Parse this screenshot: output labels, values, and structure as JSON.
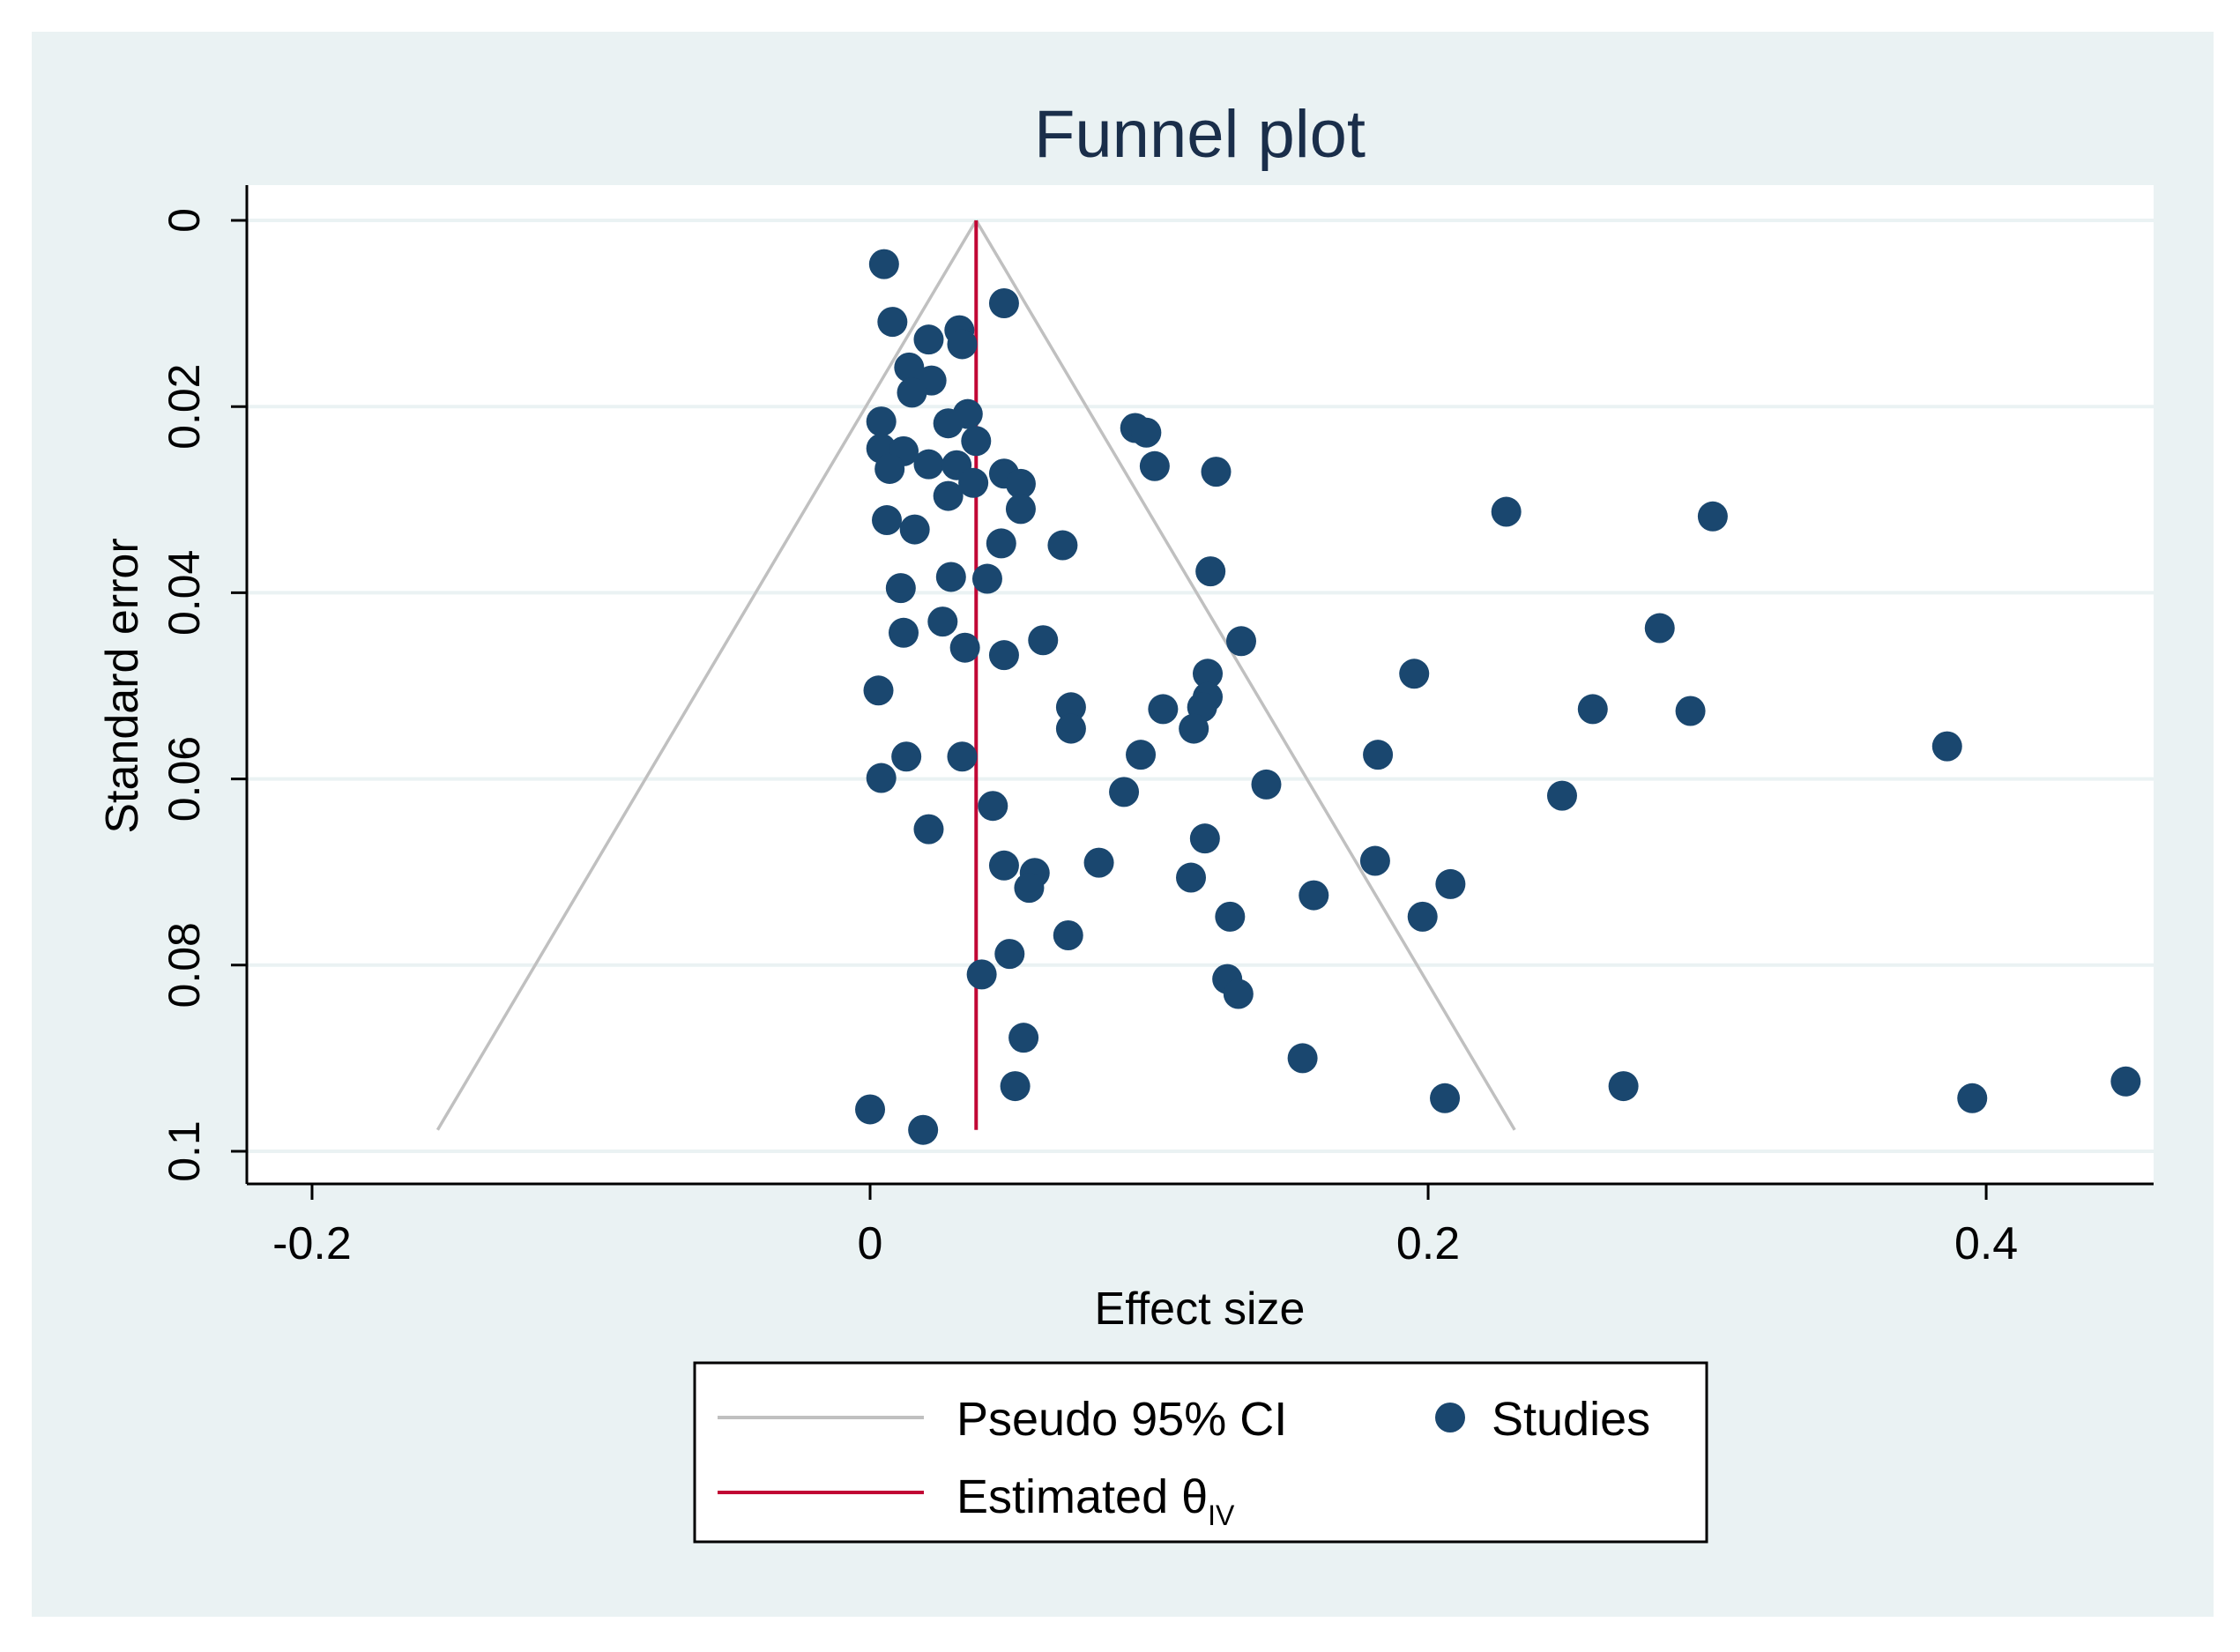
{
  "chart_data": {
    "type": "scatter",
    "title": "Funnel plot",
    "xlabel": "Effect size",
    "ylabel": "Standard error",
    "xlim": [
      -0.212,
      0.46
    ],
    "ylim": [
      0,
      0.1
    ],
    "y_inverted": true,
    "x_ticks": [
      -0.2,
      0,
      0.2,
      0.4
    ],
    "x_tick_labels": [
      "-0.2",
      "0",
      "0.2",
      "0.4"
    ],
    "y_ticks": [
      0,
      0.02,
      0.04,
      0.06,
      0.08,
      0.1
    ],
    "y_tick_labels": [
      "0",
      "0.02",
      "0.04",
      "0.06",
      "0.08",
      "0.1"
    ],
    "grid": true,
    "estimate": 0.038,
    "ci_lines": {
      "apex": [
        0.038,
        0
      ],
      "left_base": [
        -0.155,
        0.0977
      ],
      "right_base": [
        0.231,
        0.0977
      ]
    },
    "legend": {
      "position": "bottom",
      "entries": [
        {
          "label": "Pseudo 95% CI",
          "type": "line",
          "color": "#c0c0c0"
        },
        {
          "label": "Studies",
          "type": "marker",
          "color": "#1a476f"
        },
        {
          "label": "Estimated θ",
          "subscript": "IV",
          "type": "line",
          "color": "#c10534"
        }
      ]
    },
    "colors": {
      "background": "#eaf2f3",
      "plot_bg": "#ffffff",
      "points": "#1a476f",
      "estimate_line": "#c10534",
      "ci_line": "#c0c0c0",
      "gridline": "#eaf2f3",
      "title": "#1a2e4a"
    },
    "series": [
      {
        "name": "Studies",
        "points": [
          [
            0.005,
            0.0047
          ],
          [
            0.048,
            0.0089
          ],
          [
            0.008,
            0.0109
          ],
          [
            0.032,
            0.0118
          ],
          [
            0.021,
            0.0128
          ],
          [
            0.033,
            0.0133
          ],
          [
            0.014,
            0.0158
          ],
          [
            0.022,
            0.0172
          ],
          [
            0.015,
            0.0185
          ],
          [
            0.035,
            0.0208
          ],
          [
            0.028,
            0.0218
          ],
          [
            0.004,
            0.0216
          ],
          [
            0.095,
            0.0223
          ],
          [
            0.099,
            0.0228
          ],
          [
            0.038,
            0.0237
          ],
          [
            0.004,
            0.0245
          ],
          [
            0.012,
            0.0248
          ],
          [
            0.021,
            0.0262
          ],
          [
            0.031,
            0.0263
          ],
          [
            0.007,
            0.0267
          ],
          [
            0.102,
            0.0264
          ],
          [
            0.124,
            0.027
          ],
          [
            0.048,
            0.0272
          ],
          [
            0.054,
            0.0283
          ],
          [
            0.037,
            0.0282
          ],
          [
            0.028,
            0.0296
          ],
          [
            0.054,
            0.031
          ],
          [
            0.228,
            0.0313
          ],
          [
            0.302,
            0.0318
          ],
          [
            0.006,
            0.0322
          ],
          [
            0.016,
            0.0332
          ],
          [
            0.047,
            0.0347
          ],
          [
            0.069,
            0.0349
          ],
          [
            0.122,
            0.0377
          ],
          [
            0.029,
            0.0383
          ],
          [
            0.042,
            0.0385
          ],
          [
            0.011,
            0.0395
          ],
          [
            0.283,
            0.0438
          ],
          [
            0.012,
            0.0443
          ],
          [
            0.026,
            0.0431
          ],
          [
            0.062,
            0.0451
          ],
          [
            0.133,
            0.0452
          ],
          [
            0.034,
            0.0459
          ],
          [
            0.048,
            0.0467
          ],
          [
            0.195,
            0.0487
          ],
          [
            0.121,
            0.0487
          ],
          [
            0.003,
            0.0505
          ],
          [
            0.121,
            0.0512
          ],
          [
            0.072,
            0.0523
          ],
          [
            0.105,
            0.0525
          ],
          [
            0.119,
            0.0523
          ],
          [
            0.259,
            0.0525
          ],
          [
            0.294,
            0.0527
          ],
          [
            0.072,
            0.0546
          ],
          [
            0.116,
            0.0546
          ],
          [
            0.386,
            0.0565
          ],
          [
            0.013,
            0.0576
          ],
          [
            0.033,
            0.0576
          ],
          [
            0.097,
            0.0574
          ],
          [
            0.182,
            0.0574
          ],
          [
            0.004,
            0.0599
          ],
          [
            0.142,
            0.0606
          ],
          [
            0.091,
            0.0614
          ],
          [
            0.248,
            0.0618
          ],
          [
            0.044,
            0.0629
          ],
          [
            0.021,
            0.0654
          ],
          [
            0.12,
            0.0664
          ],
          [
            0.181,
            0.0688
          ],
          [
            0.082,
            0.069
          ],
          [
            0.048,
            0.0693
          ],
          [
            0.059,
            0.0701
          ],
          [
            0.115,
            0.0706
          ],
          [
            0.057,
            0.0717
          ],
          [
            0.208,
            0.0713
          ],
          [
            0.159,
            0.0725
          ],
          [
            0.129,
            0.0748
          ],
          [
            0.198,
            0.0748
          ],
          [
            0.071,
            0.0768
          ],
          [
            0.05,
            0.0788
          ],
          [
            0.04,
            0.081
          ],
          [
            0.128,
            0.0815
          ],
          [
            0.132,
            0.0831
          ],
          [
            0.055,
            0.0878
          ],
          [
            0.155,
            0.09
          ],
          [
            0.052,
            0.093
          ],
          [
            0.27,
            0.093
          ],
          [
            0.45,
            0.0925
          ],
          [
            0.206,
            0.0943
          ],
          [
            0.395,
            0.0943
          ],
          [
            0.0,
            0.0955
          ],
          [
            0.019,
            0.0977
          ]
        ]
      }
    ]
  }
}
